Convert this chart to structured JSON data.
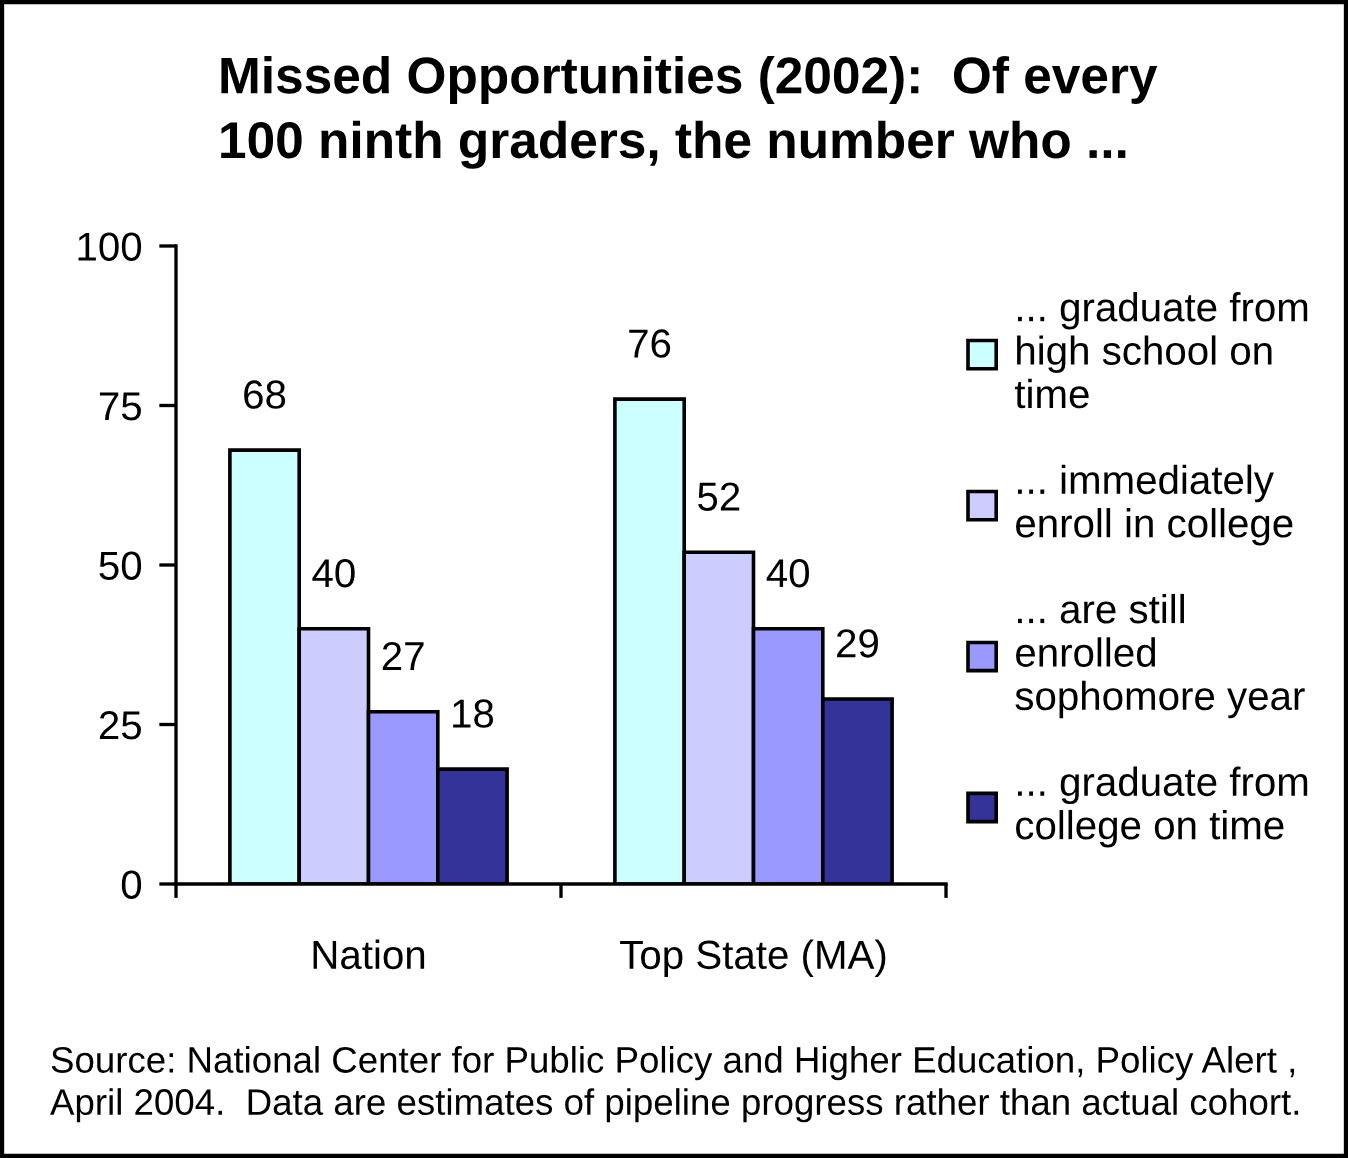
{
  "chart_data": {
    "type": "bar",
    "title": "Missed Opportunities (2002):  Of every\n100 ninth graders, the number who ...",
    "categories": [
      "Nation",
      "Top State (MA)"
    ],
    "series": [
      {
        "name": "... graduate from\nhigh school on\ntime",
        "color": "#ccffff",
        "values": [
          68,
          76
        ]
      },
      {
        "name": "... immediately\nenroll in college",
        "color": "#ccccff",
        "values": [
          40,
          52
        ]
      },
      {
        "name": "... are still\nenrolled\nsophomore year",
        "color": "#9999ff",
        "values": [
          27,
          40
        ]
      },
      {
        "name": "... graduate from\ncollege on time",
        "color": "#333399",
        "values": [
          18,
          29
        ]
      }
    ],
    "ylim": [
      0,
      100
    ],
    "yticks": [
      0,
      25,
      50,
      75,
      100
    ],
    "data_labels": true,
    "legend": "right",
    "grid": false,
    "annotations": [
      "Source: National Center for Public Policy and Higher Education, Policy Alert ,\nApril 2004.  Data are estimates of pipeline progress rather than actual cohort."
    ]
  }
}
